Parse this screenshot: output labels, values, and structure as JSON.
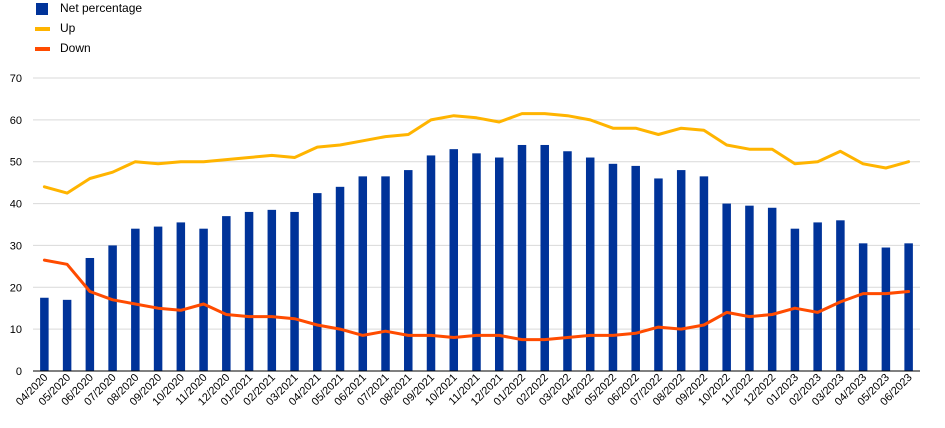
{
  "chart_data": {
    "type": "bar+line",
    "title": "",
    "xlabel": "",
    "ylabel": "",
    "ylim": [
      0,
      70
    ],
    "yticks": [
      0,
      10,
      20,
      30,
      40,
      50,
      60,
      70
    ],
    "grid": true,
    "legend_position": "top-left",
    "categories": [
      "04/2020",
      "05/2020",
      "06/2020",
      "07/2020",
      "08/2020",
      "09/2020",
      "10/2020",
      "11/2020",
      "12/2020",
      "01/2021",
      "02/2021",
      "03/2021",
      "04/2021",
      "05/2021",
      "06/2021",
      "07/2021",
      "08/2021",
      "09/2021",
      "10/2021",
      "11/2021",
      "12/2021",
      "01/2022",
      "02/2022",
      "03/2022",
      "04/2022",
      "05/2022",
      "06/2022",
      "07/2022",
      "08/2022",
      "09/2022",
      "10/2022",
      "11/2022",
      "12/2022",
      "01/2023",
      "02/2023",
      "03/2023",
      "04/2023",
      "05/2023",
      "06/2023"
    ],
    "series": [
      {
        "name": "Net percentage",
        "type": "bar",
        "color": "#003399",
        "values": [
          17.5,
          17,
          27,
          30,
          34,
          34.5,
          35.5,
          34,
          37,
          38,
          38.5,
          38,
          42.5,
          44,
          46.5,
          46.5,
          48,
          51.5,
          53,
          52,
          51,
          54,
          54,
          52.5,
          51,
          49.5,
          49,
          46,
          48,
          46.5,
          40,
          39.5,
          39,
          34,
          35.5,
          36,
          30.5,
          29.5,
          30.5
        ]
      },
      {
        "name": "Up",
        "type": "line",
        "color": "#ffb400",
        "values": [
          44,
          42.5,
          46,
          47.5,
          50,
          49.5,
          50,
          50,
          50.5,
          51,
          51.5,
          51,
          53.5,
          54,
          55,
          56,
          56.5,
          60,
          61,
          60.5,
          59.5,
          61.5,
          61.5,
          61,
          60,
          58,
          58,
          56.5,
          58,
          57.5,
          54,
          53,
          53,
          49.5,
          50,
          52.5,
          49.5,
          48.5,
          50
        ]
      },
      {
        "name": "Down",
        "type": "line",
        "color": "#ff4b00",
        "values": [
          26.5,
          25.5,
          19,
          17,
          16,
          15,
          14.5,
          16,
          13.5,
          13,
          13,
          12.5,
          11,
          10,
          8.5,
          9.5,
          8.5,
          8.5,
          8,
          8.5,
          8.5,
          7.5,
          7.5,
          8,
          8.5,
          8.5,
          9,
          10.5,
          10,
          11,
          14,
          13,
          13.5,
          15,
          14,
          16.5,
          18.5,
          18.5,
          19
        ]
      }
    ]
  }
}
